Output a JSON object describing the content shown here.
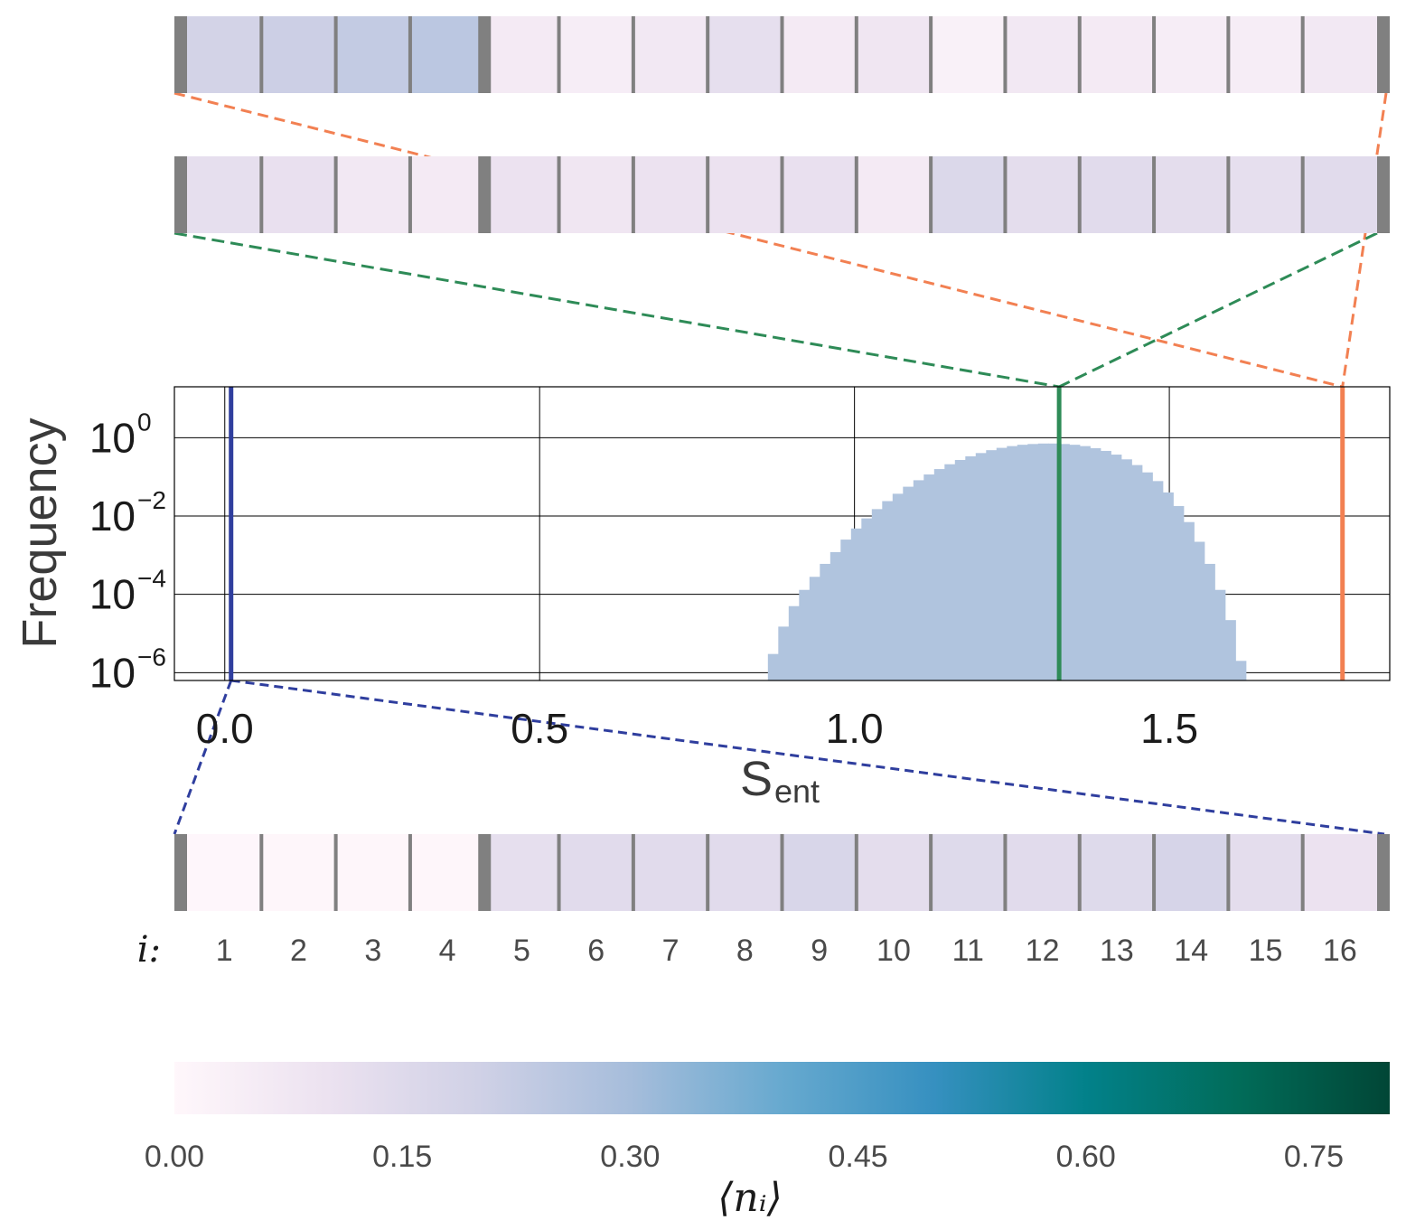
{
  "chart_data": [
    {
      "type": "heatmap",
      "name": "occupation-chain-top",
      "cells": [
        0.19,
        0.21,
        0.23,
        0.25,
        0.06,
        0.05,
        0.07,
        0.12,
        0.06,
        0.08,
        0.03,
        0.07,
        0.06,
        0.05,
        0.05,
        0.07
      ],
      "connector_color": "#f28052"
    },
    {
      "type": "heatmap",
      "name": "occupation-chain-middle",
      "cells": [
        0.12,
        0.11,
        0.07,
        0.06,
        0.1,
        0.08,
        0.1,
        0.1,
        0.11,
        0.06,
        0.16,
        0.13,
        0.14,
        0.13,
        0.12,
        0.14
      ],
      "connector_color": "#2e8b57"
    },
    {
      "type": "bar",
      "name": "entropy-histogram",
      "xlabel": "S",
      "xlabel_sub": "ent",
      "ylabel": "Frequency",
      "x_ticks": [
        "0.0",
        "0.5",
        "1.0",
        "1.5"
      ],
      "x_tick_values": [
        0.0,
        0.5,
        1.0,
        1.5
      ],
      "y_ticks": [
        {
          "base": "10",
          "exp": "0",
          "value": 1
        },
        {
          "base": "10",
          "exp": "−2",
          "value": 0.01
        },
        {
          "base": "10",
          "exp": "−4",
          "value": 0.0001
        },
        {
          "base": "10",
          "exp": "−6",
          "value": 1e-06
        }
      ],
      "xlim": [
        -0.08,
        1.85
      ],
      "ylog_range": [
        -6.2,
        1.3
      ],
      "y_scale": "log",
      "grid": true,
      "bar_color": "#b0c4de",
      "bin_width": 0.0165,
      "bins_start": 0.8625,
      "values": [
        3e-06,
        1.5e-05,
        5e-05,
        0.00013,
        0.00028,
        0.0006,
        0.0012,
        0.0025,
        0.0048,
        0.0087,
        0.015,
        0.024,
        0.037,
        0.056,
        0.082,
        0.115,
        0.158,
        0.21,
        0.27,
        0.335,
        0.405,
        0.48,
        0.55,
        0.61,
        0.66,
        0.69,
        0.71,
        0.71,
        0.69,
        0.66,
        0.61,
        0.54,
        0.46,
        0.37,
        0.28,
        0.2,
        0.13,
        0.078,
        0.04,
        0.018,
        0.007,
        0.0022,
        0.0006,
        0.00013,
        2.2e-05,
        2e-06
      ],
      "vlines": [
        {
          "x": 0.01,
          "color": "#2f3e9e",
          "label": "blue"
        },
        {
          "x": 1.325,
          "color": "#2e8b57",
          "label": "green"
        },
        {
          "x": 1.775,
          "color": "#f28052",
          "label": "orange"
        }
      ]
    },
    {
      "type": "heatmap",
      "name": "occupation-chain-bottom",
      "cells": [
        0.003,
        0.005,
        0.006,
        0.006,
        0.12,
        0.14,
        0.14,
        0.14,
        0.17,
        0.13,
        0.15,
        0.14,
        0.15,
        0.18,
        0.13,
        0.1
      ],
      "connector_color": "#2f3e9e"
    }
  ],
  "site_axis": {
    "label": "i:",
    "indices": [
      "1",
      "2",
      "3",
      "4",
      "5",
      "6",
      "7",
      "8",
      "9",
      "10",
      "11",
      "12",
      "13",
      "14",
      "15",
      "16"
    ]
  },
  "colorbar": {
    "label": "⟨nᵢ⟩",
    "ticks": [
      "0.00",
      "0.15",
      "0.30",
      "0.45",
      "0.60",
      "0.75"
    ],
    "tick_values": [
      0.0,
      0.15,
      0.3,
      0.45,
      0.6,
      0.75
    ],
    "range": [
      0,
      0.8
    ],
    "colormap": "PuBuGn",
    "stops": [
      "#fff7fb",
      "#ece2f0",
      "#d0d1e6",
      "#a6bddb",
      "#67a9cf",
      "#3690c0",
      "#02818a",
      "#016c59",
      "#014636"
    ]
  }
}
